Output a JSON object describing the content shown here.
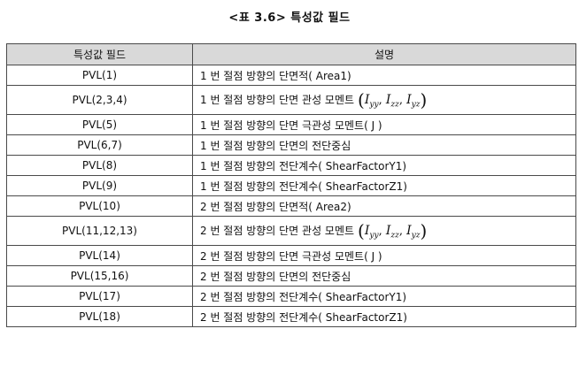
{
  "caption": "<표 3.6> 특성값 필드",
  "table": {
    "headers": {
      "field": "특성값 필드",
      "desc": "설명"
    },
    "rows": [
      {
        "field": "PVL(1)",
        "desc": "1 번 절점 방향의 단면적( Area1)"
      },
      {
        "field": "PVL(2,3,4)",
        "desc": "1 번 절점 방향의 단면 관성 모멘트",
        "math": {
          "open": "(",
          "close": ")",
          "sep": ",",
          "terms": [
            {
              "symbol": "I",
              "sub": "yy"
            },
            {
              "symbol": "I",
              "sub": "zz"
            },
            {
              "symbol": "I",
              "sub": "yz"
            }
          ]
        }
      },
      {
        "field": "PVL(5)",
        "desc": "1 번 절점 방향의 단면 극관성 모멘트( J )"
      },
      {
        "field": "PVL(6,7)",
        "desc": "1 번 절점 방향의 단면의 전단중심"
      },
      {
        "field": "PVL(8)",
        "desc": "1 번 절점 방향의 전단계수( ShearFactorY1)"
      },
      {
        "field": "PVL(9)",
        "desc": "1 번 절점 방향의 전단계수( ShearFactorZ1)"
      },
      {
        "field": "PVL(10)",
        "desc": "2 번 절점 방향의 단면적( Area2)"
      },
      {
        "field": "PVL(11,12,13)",
        "desc": "2 번 절점 방향의 단면 관성 모멘트",
        "math": {
          "open": "(",
          "close": ")",
          "sep": ",",
          "terms": [
            {
              "symbol": "I",
              "sub": "yy"
            },
            {
              "symbol": "I",
              "sub": "zz"
            },
            {
              "symbol": "I",
              "sub": "yz"
            }
          ]
        }
      },
      {
        "field": "PVL(14)",
        "desc": "2 번 절점 방향의 단면 극관성 모멘트( J )"
      },
      {
        "field": "PVL(15,16)",
        "desc": "2 번 절점 방향의 단면의 전단중심"
      },
      {
        "field": "PVL(17)",
        "desc": "2 번 절점 방향의 전단계수( ShearFactorY1)"
      },
      {
        "field": "PVL(18)",
        "desc": "2 번 절점 방향의 전단계수( ShearFactorZ1)"
      }
    ]
  }
}
